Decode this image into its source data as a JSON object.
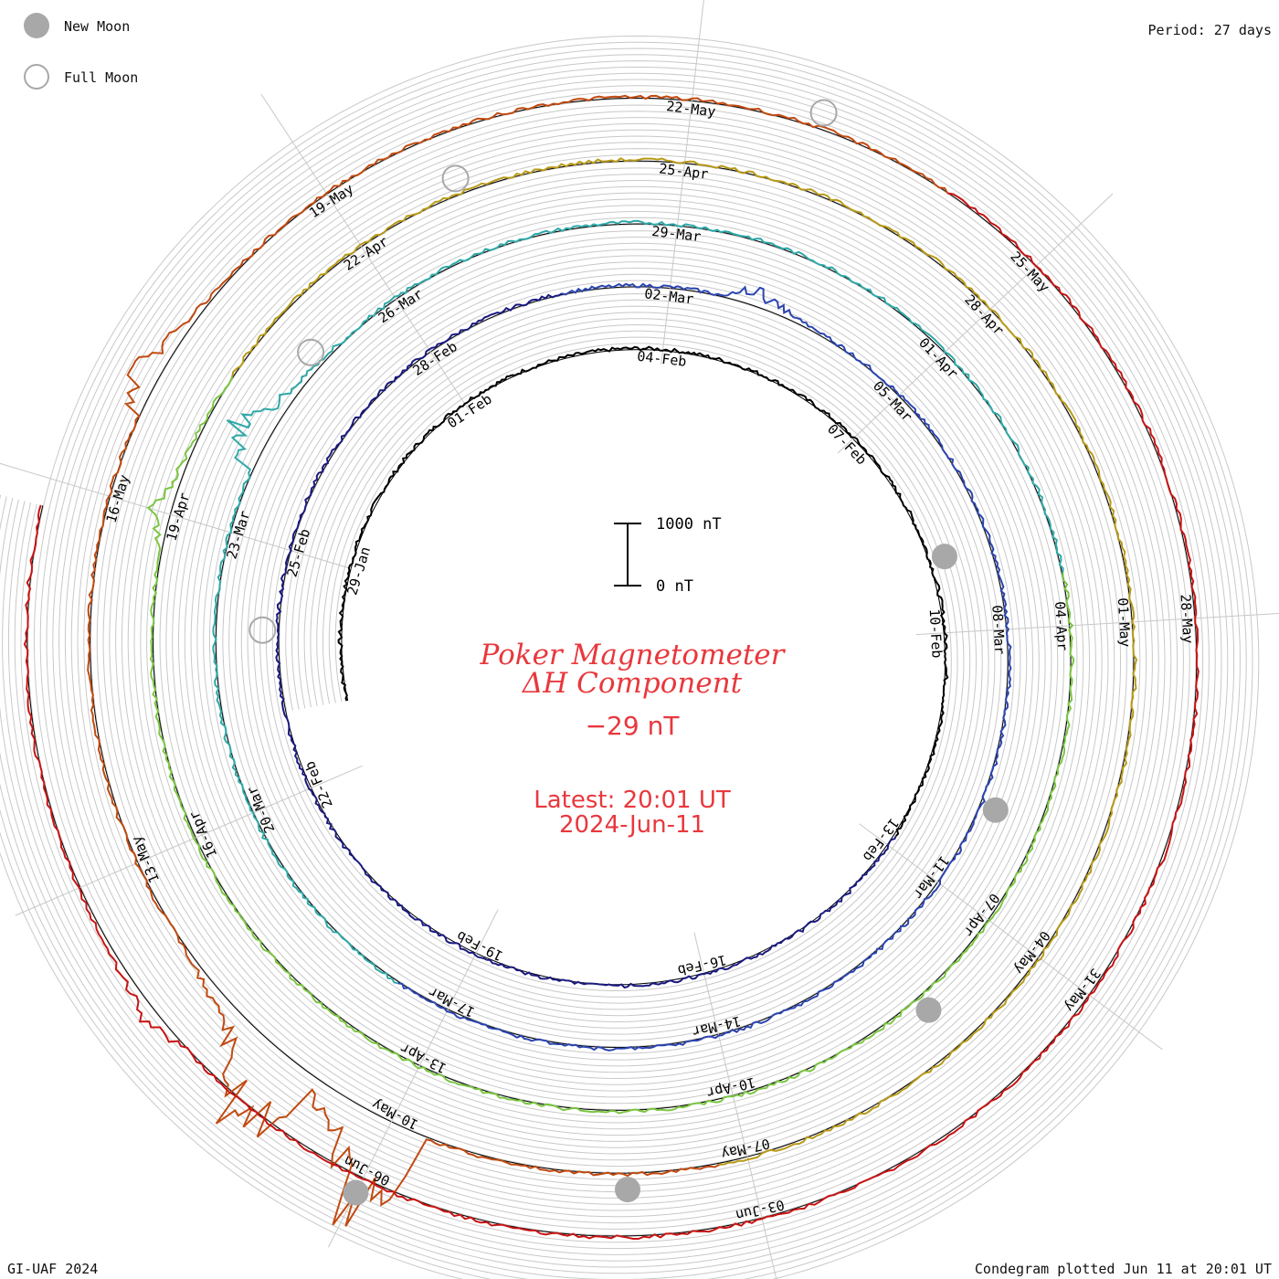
{
  "legend": {
    "new_moon": "New Moon",
    "full_moon": "Full Moon"
  },
  "period": "Period: 27 days",
  "footer": {
    "left": "GI-UAF 2024",
    "right": "Condegram plotted Jun 11 at 20:01 UT"
  },
  "center": {
    "title_line1": "Poker Magnetometer",
    "title_line2": "ΔH Component",
    "value": "−29 nT",
    "latest": "Latest: 20:01 UT",
    "date": "2024-Jun-11",
    "scale_top": "1000 nT",
    "scale_bottom": "0 nT"
  },
  "colors": {
    "title": "#e8383d",
    "grid": "#c8c8c8",
    "moon": "#a8a8a8",
    "revolutions": [
      "#000000",
      "#1a1a80",
      "#2b45b0",
      "#2fa8a8",
      "#7bc642",
      "#b89a18",
      "#c04a10",
      "#c81414"
    ]
  },
  "chart_data": {
    "type": "line",
    "title": "Poker Magnetometer ΔH Component",
    "period_days": 27,
    "scale_nT": [
      0,
      1000
    ],
    "date_labels": [
      "29-Jan",
      "01-Feb",
      "04-Feb",
      "07-Feb",
      "10-Feb",
      "13-Feb",
      "16-Feb",
      "19-Feb",
      "22-Feb",
      "25-Feb",
      "28-Feb",
      "02-Mar",
      "05-Mar",
      "08-Mar",
      "11-Mar",
      "14-Mar",
      "17-Mar",
      "20-Mar",
      "23-Mar",
      "26-Mar",
      "29-Mar",
      "01-Apr",
      "04-Apr",
      "07-Apr",
      "10-Apr",
      "13-Apr",
      "16-Apr",
      "19-Apr",
      "22-Apr",
      "25-Apr",
      "28-Apr",
      "01-May",
      "04-May",
      "07-May",
      "10-May",
      "13-May",
      "16-May",
      "19-May",
      "22-May",
      "25-May",
      "28-May",
      "31-May",
      "03-Jun",
      "06-Jun"
    ],
    "start_date": "2024-01-27",
    "end_date": "2024-06-11",
    "new_moons": [
      "2024-02-09",
      "2024-03-10",
      "2024-04-08",
      "2024-05-08",
      "2024-06-06"
    ],
    "full_moons": [
      "2024-02-24",
      "2024-03-25",
      "2024-04-23",
      "2024-05-23"
    ],
    "disturbances": [
      {
        "date": "2024-03-03",
        "peak_nT": 350
      },
      {
        "date": "2024-03-24",
        "peak_nT": 900
      },
      {
        "date": "2024-04-19",
        "peak_nT": 350
      },
      {
        "date": "2024-05-10",
        "peak_nT": 2500
      },
      {
        "date": "2024-05-11",
        "peak_nT": 2200
      },
      {
        "date": "2024-05-17",
        "peak_nT": 600
      },
      {
        "date": "2024-06-08",
        "peak_nT": 300
      }
    ]
  }
}
